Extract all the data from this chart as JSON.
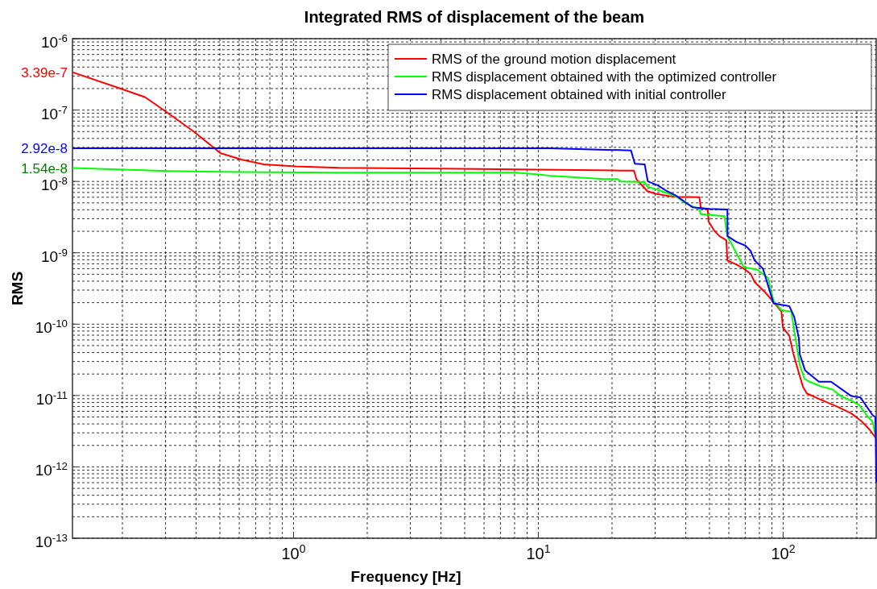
{
  "chart_data": {
    "type": "line",
    "title": "Integrated RMS of displacement of the beam",
    "xlabel": "Frequency [Hz]",
    "ylabel": "RMS",
    "log": "xy",
    "grid": true,
    "legend": "top right",
    "xlim": [
      0.125,
      240
    ],
    "ylim": [
      1e-13,
      1e-06
    ],
    "xticks": [
      {
        "value": 1,
        "label": "10$^{0}$"
      },
      {
        "value": 10,
        "label": "10$^{1}$"
      },
      {
        "value": 100,
        "label": "10$^{2}$"
      }
    ],
    "yticks": [
      {
        "value": 1e-13,
        "label": "10$^{-13}$"
      },
      {
        "value": 1e-12,
        "label": "10$^{-12}$"
      },
      {
        "value": 1e-11,
        "label": "10$^{-11}$"
      },
      {
        "value": 1e-10,
        "label": "10$^{-10}$"
      },
      {
        "value": 1e-09,
        "label": "10$^{-9}$"
      },
      {
        "value": 1e-08,
        "label": "10$^{-8}$"
      },
      {
        "value": 1e-07,
        "label": "10$^{-7}$"
      },
      {
        "value": 1e-06,
        "label": "10$^{-6}$"
      }
    ],
    "series": [
      {
        "name": "RMS of the ground motion displacement",
        "color": "#ff0000",
        "x": [
          0.125,
          0.2,
          0.248,
          0.305,
          0.391,
          0.472,
          0.502,
          0.616,
          0.756,
          1.02,
          1.53,
          4.0,
          21.7,
          24.6,
          25.2,
          27.9,
          30.1,
          34.1,
          36.7,
          45.5,
          46.1,
          49.2,
          49.6,
          52.4,
          55.0,
          58.6,
          59.2,
          64.2,
          69.1,
          73.7,
          76.5,
          84.7,
          91.4,
          98.4,
          99.8,
          106,
          110,
          116,
          120.5,
          125,
          144,
          167,
          190,
          210,
          226,
          240
        ],
        "values": [
          3.39e-07,
          1.96e-07,
          1.51e-07,
          9.2e-08,
          5e-08,
          2.97e-08,
          2.49e-08,
          2.01e-08,
          1.73e-08,
          1.62e-08,
          1.55e-08,
          1.51e-08,
          1.42e-08,
          1.42e-08,
          1.06e-08,
          7.3e-09,
          6.7e-09,
          6.25e-09,
          6.1e-09,
          6e-09,
          4.24e-09,
          4.05e-09,
          2.74e-09,
          2.03e-09,
          1.71e-09,
          1.5e-09,
          7.8e-10,
          6.86e-10,
          6e-10,
          5.06e-10,
          3.9e-10,
          2.76e-10,
          2.04e-10,
          1.5e-10,
          8.95e-11,
          6.9e-11,
          3.9e-11,
          2.06e-11,
          1.33e-11,
          1.07e-11,
          8.6e-12,
          6.95e-12,
          5.6e-12,
          4.3e-12,
          3.3e-12,
          2.5e-12
        ]
      },
      {
        "name": "RMS displacement obtained with the optimized controller",
        "color": "#00ff00",
        "x": [
          0.125,
          0.16,
          0.305,
          0.616,
          1.5,
          8.1,
          10,
          11.2,
          13.7,
          18.6,
          21.1,
          21.7,
          27.2,
          27.9,
          31.6,
          36.7,
          39.7,
          45.5,
          46.1,
          57.6,
          59.2,
          64.2,
          69.1,
          78.5,
          86.7,
          91.4,
          98.4,
          108,
          111,
          117,
          122,
          127,
          144,
          159,
          172,
          192,
          205,
          221,
          232,
          240
        ],
        "values": [
          1.54e-08,
          1.5e-08,
          1.4e-08,
          1.35e-08,
          1.33e-08,
          1.33e-08,
          1.25e-08,
          1.2e-08,
          1.15e-08,
          1.08e-08,
          1.08e-08,
          1e-08,
          9.8e-09,
          8.45e-09,
          7.4e-09,
          6.1e-09,
          5e-09,
          4.05e-09,
          3.47e-09,
          3.26e-09,
          1.71e-09,
          1.01e-09,
          6.3e-10,
          5.8e-10,
          4.45e-10,
          2.13e-10,
          1.57e-10,
          1.5e-10,
          8.2e-11,
          2.67e-11,
          1.73e-11,
          1.58e-11,
          1.33e-11,
          1.22e-11,
          9.8e-12,
          8.3e-12,
          7.3e-12,
          5.1e-12,
          4.3e-12,
          2.5e-12
        ]
      },
      {
        "name": "RMS displacement obtained with initial controller",
        "color": "#0000ff",
        "x": [
          0.125,
          11.2,
          17.7,
          23.9,
          24.8,
          27.2,
          28.0,
          30.8,
          33.3,
          36.7,
          42.6,
          49.9,
          59.2,
          59.3,
          64.2,
          70.2,
          73.7,
          76.5,
          82.7,
          91.4,
          106,
          111,
          116,
          117,
          123,
          140,
          157,
          190,
          207,
          232,
          238,
          239,
          240
        ],
        "values": [
          2.92e-08,
          2.92e-08,
          2.79e-08,
          2.72e-08,
          1.77e-08,
          1.73e-08,
          1e-08,
          8.8e-09,
          7.4e-09,
          6.25e-09,
          4.35e-09,
          4.13e-09,
          4.05e-09,
          1.71e-09,
          1.43e-09,
          1.26e-09,
          1.06e-09,
          7.8e-10,
          6e-10,
          1.95e-10,
          1.79e-10,
          1.27e-10,
          6.3e-11,
          3.77e-11,
          2.24e-11,
          1.56e-11,
          1.56e-11,
          9.8e-12,
          9.4e-12,
          5.3e-12,
          5e-12,
          2.5e-12,
          6.1e-13
        ]
      }
    ],
    "annotations": [
      "3.39e-7",
      "1.54e-8",
      "2.92e-8"
    ]
  }
}
